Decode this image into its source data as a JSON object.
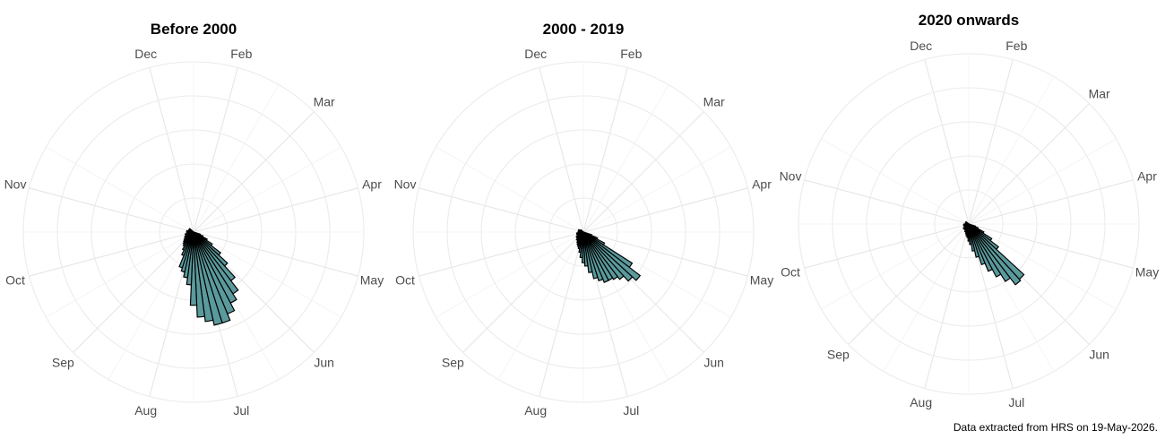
{
  "caption": "Data extracted from HRS on 19-May-2026.",
  "colors": {
    "bar_fill": "#5b9a9c",
    "bar_stroke": "#000000",
    "grid": "#ebebeb",
    "label": "#4d4d4d"
  },
  "chart_data": [
    {
      "type": "bar",
      "coord": "polar",
      "title": "Before 2000",
      "month_labels": [
        "Dec",
        "Feb",
        "Mar",
        "Apr",
        "May",
        "Jun",
        "Jul",
        "Aug",
        "Sep",
        "Oct",
        "Nov"
      ],
      "month_angles_deg": [
        -15,
        15,
        45,
        75,
        105,
        135,
        165,
        195,
        225,
        255,
        285
      ],
      "bar_angles_deg": [
        110,
        115,
        120,
        125,
        130,
        135,
        140,
        145,
        150,
        155,
        160,
        165,
        170,
        175,
        180,
        185,
        190,
        195,
        200,
        205,
        210,
        215,
        220,
        225,
        230,
        235,
        240,
        245,
        250,
        255,
        260,
        265,
        270,
        275,
        280,
        285,
        290,
        295,
        300,
        305,
        310
      ],
      "values": [
        0.04,
        0.06,
        0.09,
        0.13,
        0.2,
        0.27,
        0.36,
        0.43,
        0.47,
        0.52,
        0.56,
        0.56,
        0.53,
        0.5,
        0.43,
        0.31,
        0.27,
        0.24,
        0.22,
        0.15,
        0.12,
        0.1,
        0.09,
        0.08,
        0.07,
        0.06,
        0.06,
        0.05,
        0.05,
        0.05,
        0.04,
        0.04,
        0.04,
        0.04,
        0.04,
        0.03,
        0.03,
        0.03,
        0.03,
        0.03,
        0.03
      ],
      "bar_width_deg": 5,
      "r_max": 1,
      "grid_rings": 5
    },
    {
      "type": "bar",
      "coord": "polar",
      "title": "2000 - 2019",
      "month_labels": [
        "Dec",
        "Feb",
        "Mar",
        "Apr",
        "May",
        "Jun",
        "Jul",
        "Aug",
        "Sep",
        "Oct",
        "Nov"
      ],
      "month_angles_deg": [
        -15,
        15,
        45,
        75,
        105,
        135,
        165,
        195,
        225,
        255,
        285
      ],
      "bar_angles_deg": [
        110,
        115,
        120,
        125,
        130,
        135,
        140,
        145,
        150,
        155,
        160,
        165,
        170,
        175,
        180,
        185,
        190,
        195,
        200,
        205,
        210,
        215,
        220,
        225,
        230,
        235,
        240,
        245,
        250,
        255,
        260,
        265,
        270,
        275,
        280,
        285,
        290,
        295,
        300,
        305,
        310
      ],
      "values": [
        0.05,
        0.09,
        0.14,
        0.34,
        0.42,
        0.39,
        0.35,
        0.33,
        0.32,
        0.32,
        0.3,
        0.28,
        0.24,
        0.2,
        0.18,
        0.15,
        0.12,
        0.1,
        0.09,
        0.08,
        0.07,
        0.06,
        0.06,
        0.05,
        0.05,
        0.05,
        0.04,
        0.04,
        0.04,
        0.04,
        0.04,
        0.03,
        0.03,
        0.03,
        0.03,
        0.03,
        0.03,
        0.03,
        0.02,
        0.02,
        0.02
      ],
      "bar_width_deg": 5,
      "r_max": 1,
      "grid_rings": 5
    },
    {
      "type": "bar",
      "coord": "polar",
      "title": "2020 onwards",
      "month_labels": [
        "Dec",
        "Feb",
        "Mar",
        "Apr",
        "May",
        "Jun",
        "Jul",
        "Aug",
        "Sep",
        "Oct",
        "Nov"
      ],
      "month_angles_deg": [
        -15,
        15,
        45,
        75,
        105,
        135,
        165,
        195,
        225,
        255,
        285
      ],
      "bar_angles_deg": [
        110,
        115,
        120,
        125,
        130,
        135,
        140,
        145,
        150,
        155,
        160,
        165,
        170,
        175,
        180,
        185,
        190,
        195,
        200,
        205,
        210,
        215,
        220,
        225,
        230,
        235,
        240,
        245,
        250,
        255,
        260,
        265,
        270,
        275,
        280,
        285,
        290,
        295,
        300,
        305,
        310
      ],
      "values": [
        0.04,
        0.06,
        0.1,
        0.16,
        0.22,
        0.44,
        0.45,
        0.4,
        0.35,
        0.3,
        0.25,
        0.2,
        0.16,
        0.12,
        0.1,
        0.08,
        0.07,
        0.06,
        0.05,
        0.05,
        0.04,
        0.04,
        0.04,
        0.04,
        0.04,
        0.03,
        0.03,
        0.03,
        0.03,
        0.03,
        0.03,
        0.03,
        0.02,
        0.02,
        0.02,
        0.02,
        0.02,
        0.02,
        0.02,
        0.02,
        0.02
      ],
      "bar_width_deg": 5,
      "r_max": 1,
      "grid_rings": 5
    }
  ]
}
